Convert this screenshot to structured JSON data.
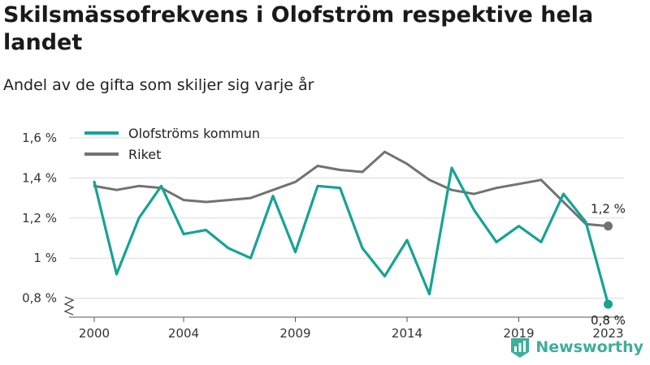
{
  "header": {
    "title": "Skilsmässofrekvens i Olofström respektive hela landet",
    "subtitle": "Andel av de gifta som skiljer sig varje år"
  },
  "brand": {
    "name": "Newsworthy",
    "icon": "bar-chart-logo-icon",
    "color": "#3fae9b"
  },
  "chart_data": {
    "type": "line",
    "title": "Skilsmässofrekvens i Olofström respektive hela landet",
    "subtitle": "Andel av de gifta som skiljer sig varje år",
    "xlabel": "",
    "ylabel": "",
    "ylim": [
      0.75,
      1.62
    ],
    "xlim": [
      1999.5,
      2023.7
    ],
    "grid": true,
    "legend_position": "top-left",
    "y_ticks": [
      {
        "value": 0.8,
        "label": "0,8 %"
      },
      {
        "value": 1.0,
        "label": "1 %"
      },
      {
        "value": 1.2,
        "label": "1,2 %"
      },
      {
        "value": 1.4,
        "label": "1,4 %"
      },
      {
        "value": 1.6,
        "label": "1,6 %"
      }
    ],
    "x_ticks": [
      {
        "value": 2000,
        "label": "2000"
      },
      {
        "value": 2004,
        "label": "2004"
      },
      {
        "value": 2009,
        "label": "2009"
      },
      {
        "value": 2014,
        "label": "2014"
      },
      {
        "value": 2019,
        "label": "2019"
      },
      {
        "value": 2023,
        "label": "2023"
      }
    ],
    "x": [
      2000,
      2001,
      2002,
      2003,
      2004,
      2005,
      2006,
      2007,
      2008,
      2009,
      2010,
      2011,
      2012,
      2013,
      2014,
      2015,
      2016,
      2017,
      2018,
      2019,
      2020,
      2021,
      2022,
      2023
    ],
    "series": [
      {
        "name": "Olofströms kommun",
        "color": "#16a394",
        "values": [
          1.38,
          0.92,
          1.2,
          1.36,
          1.12,
          1.14,
          1.05,
          1.0,
          1.31,
          1.03,
          1.36,
          1.35,
          1.05,
          0.91,
          1.09,
          0.82,
          1.45,
          1.24,
          1.08,
          1.16,
          1.08,
          1.32,
          1.18,
          0.77
        ],
        "end_label": "0,8 %"
      },
      {
        "name": "Riket",
        "color": "#727272",
        "values": [
          1.36,
          1.34,
          1.36,
          1.35,
          1.29,
          1.28,
          1.29,
          1.3,
          1.34,
          1.38,
          1.46,
          1.44,
          1.43,
          1.53,
          1.47,
          1.39,
          1.34,
          1.32,
          1.35,
          1.37,
          1.39,
          1.28,
          1.17,
          1.16
        ],
        "end_label": "1,2 %"
      }
    ]
  }
}
